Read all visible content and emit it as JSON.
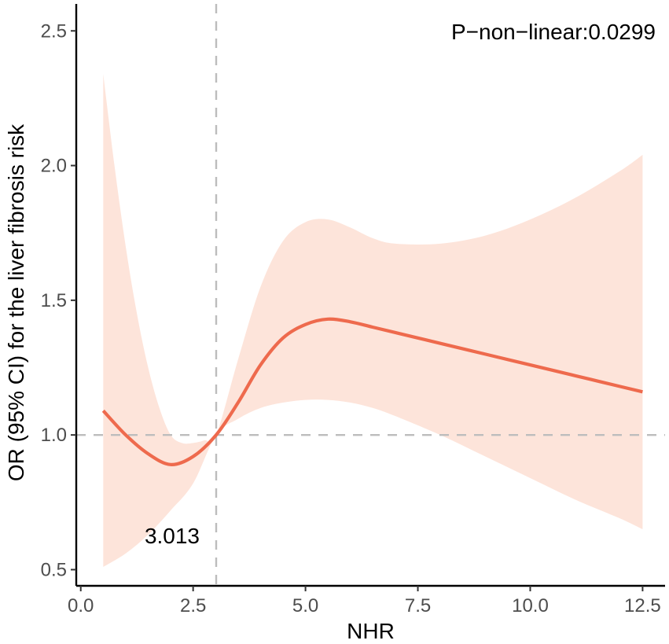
{
  "chart_data": {
    "type": "line",
    "title": "",
    "xlabel": "NHR",
    "ylabel": "OR (95% CI) for the liver fibrosis risk",
    "xlim": [
      -0.1,
      13.0
    ],
    "ylim": [
      0.44,
      2.6
    ],
    "x_ticks": [
      0.0,
      2.5,
      5.0,
      7.5,
      10.0,
      12.5
    ],
    "x_tick_labels": [
      "0.0",
      "2.5",
      "5.0",
      "7.5",
      "10.0",
      "12.5"
    ],
    "y_ticks": [
      0.5,
      1.0,
      1.5,
      2.0,
      2.5
    ],
    "y_tick_labels": [
      "0.5",
      "1.0",
      "1.5",
      "2.0",
      "2.5"
    ],
    "grid": false,
    "series": [
      {
        "role": "estimate",
        "x": [
          0.5,
          1.0,
          1.5,
          2.0,
          2.5,
          3.013,
          3.5,
          4.0,
          4.5,
          5.0,
          5.5,
          6.0,
          6.5,
          7.0,
          7.5,
          8.0,
          9.0,
          10.0,
          11.0,
          12.0,
          12.5
        ],
        "y": [
          1.09,
          1.0,
          0.93,
          0.89,
          0.92,
          1.0,
          1.12,
          1.26,
          1.36,
          1.41,
          1.43,
          1.42,
          1.4,
          1.38,
          1.36,
          1.34,
          1.3,
          1.26,
          1.22,
          1.18,
          1.16
        ]
      },
      {
        "role": "ci_upper",
        "x": [
          0.5,
          0.75,
          1.0,
          1.25,
          1.5,
          1.75,
          2.0,
          2.25,
          2.5,
          2.75,
          3.013,
          3.5,
          4.0,
          4.5,
          5.0,
          5.5,
          6.0,
          6.5,
          7.0,
          8.0,
          9.0,
          10.0,
          11.0,
          12.0,
          12.5
        ],
        "y": [
          2.34,
          2.0,
          1.7,
          1.45,
          1.25,
          1.1,
          1.0,
          0.97,
          0.97,
          0.98,
          1.0,
          1.28,
          1.55,
          1.72,
          1.79,
          1.8,
          1.77,
          1.73,
          1.71,
          1.71,
          1.74,
          1.8,
          1.88,
          1.98,
          2.04
        ]
      },
      {
        "role": "ci_lower",
        "x": [
          0.5,
          1.0,
          1.5,
          2.0,
          2.5,
          3.013,
          3.5,
          4.0,
          4.5,
          5.0,
          5.5,
          6.0,
          6.5,
          7.0,
          8.0,
          9.0,
          10.0,
          11.0,
          12.0,
          12.5
        ],
        "y": [
          0.51,
          0.56,
          0.63,
          0.72,
          0.82,
          1.0,
          1.06,
          1.1,
          1.12,
          1.13,
          1.13,
          1.12,
          1.1,
          1.07,
          1.0,
          0.92,
          0.84,
          0.76,
          0.69,
          0.65
        ]
      }
    ],
    "reference_lines": {
      "horizontal_y": 1.0,
      "vertical_x": 3.013
    },
    "annotations": {
      "cutpoint_label": "3.013",
      "p_value_label": "P−non−linear:0.0299"
    },
    "colors": {
      "line": "#ee6a4d",
      "ribbon": "#fde4da",
      "reference": "#bdbdbd",
      "axis": "#000000",
      "tick_label": "#4d4d4d"
    }
  }
}
